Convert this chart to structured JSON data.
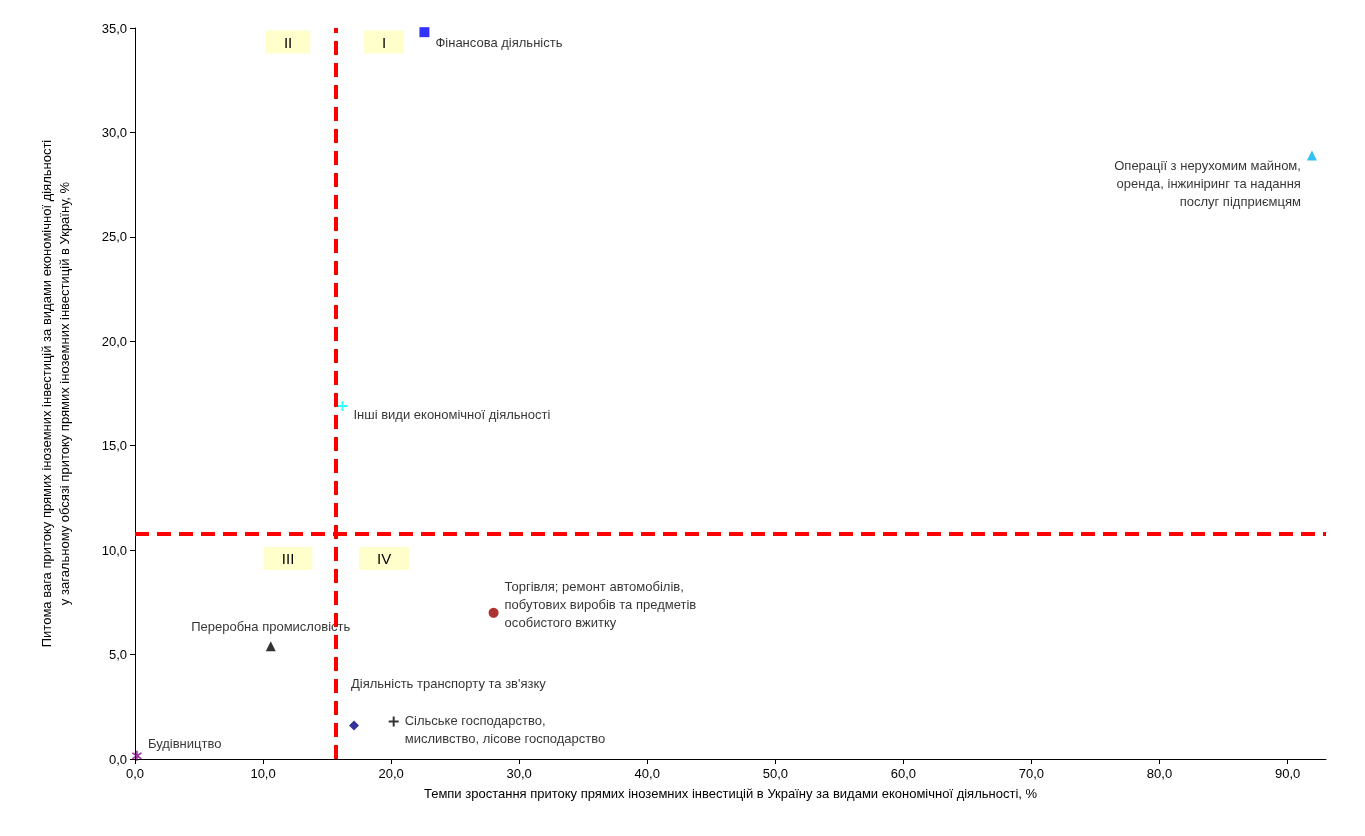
{
  "chart_data": {
    "type": "scatter",
    "xlabel": "Темпи зростання притоку прямих іноземних інвестицій в Україну за видами економічної діяльності, %",
    "ylabel": "Питома вага притоку прямих іноземних інвестицій за видами економічної діяльності\nу загальному обсязі притоку прямих іноземних інвестицій в Україну, %",
    "xlim": [
      0,
      93
    ],
    "xticks": [
      {
        "value": 0,
        "label": "0,0"
      },
      {
        "value": 10,
        "label": "10,0"
      },
      {
        "value": 20,
        "label": "20,0"
      },
      {
        "value": 30,
        "label": "30,0"
      },
      {
        "value": 40,
        "label": "40,0"
      },
      {
        "value": 50,
        "label": "50,0"
      },
      {
        "value": 60,
        "label": "60,0"
      },
      {
        "value": 70,
        "label": "70,0"
      },
      {
        "value": 80,
        "label": "80,0"
      },
      {
        "value": 90,
        "label": "90,0"
      }
    ],
    "ylim": [
      0,
      35
    ],
    "yticks": [
      {
        "value": 0,
        "label": "0,0"
      },
      {
        "value": 5,
        "label": "5,0"
      },
      {
        "value": 10,
        "label": "10,0"
      },
      {
        "value": 15,
        "label": "15,0"
      },
      {
        "value": 20,
        "label": "20,0"
      },
      {
        "value": 25,
        "label": "25,0"
      },
      {
        "value": 30,
        "label": "30,0"
      },
      {
        "value": 35,
        "label": "35,0"
      }
    ],
    "grid": false,
    "legend": false,
    "series": [
      {
        "name": "Фінансова діяльність",
        "color": "#0000ff",
        "marker": "square",
        "x": [
          22.6
        ],
        "values": [
          34.8
        ]
      },
      {
        "name": "Операції з нерухомим майном,\nоренда, інжиніринг та надання\nпослуг підприємцям",
        "color": "#00b0f0",
        "marker": "triangle",
        "x": [
          91.9
        ],
        "values": [
          28.9
        ]
      },
      {
        "name": "Інші види економічної діяльності",
        "color": "#00ffff",
        "marker": "cross",
        "x": [
          16.2
        ],
        "values": [
          16.9
        ]
      },
      {
        "name": "Торгівля; ремонт автомобілів,\nпобутових виробів та предметів\nособистого вжитку",
        "color": "#990000",
        "marker": "circle",
        "x": [
          28.0
        ],
        "values": [
          7.0
        ]
      },
      {
        "name": "Переробна промисловість",
        "color": "#000000",
        "marker": "triangle",
        "x": [
          10.6
        ],
        "values": [
          5.4
        ]
      },
      {
        "name": "Діяльність транспорту та зв'язку",
        "color": "#000080",
        "marker": "diamond",
        "x": [
          17.1
        ],
        "values": [
          1.6
        ]
      },
      {
        "name": "Сільське господарство,\nмисливство, лісове господарство",
        "color": "#000000",
        "marker": "cross",
        "x": [
          20.2
        ],
        "values": [
          1.8
        ]
      },
      {
        "name": "Будівництво",
        "color": "#800080",
        "marker": "star",
        "x": [
          0.15
        ],
        "values": [
          0.15
        ]
      }
    ],
    "ref_lines": [
      {
        "axis": "x",
        "value": 15.7,
        "color": "#ff0000",
        "line_style": "dashed"
      },
      {
        "axis": "y",
        "value": 10.8,
        "color": "#ff0000",
        "line_style": "dashed"
      }
    ],
    "annotations": [
      "I",
      "II",
      "III",
      "IV"
    ]
  }
}
